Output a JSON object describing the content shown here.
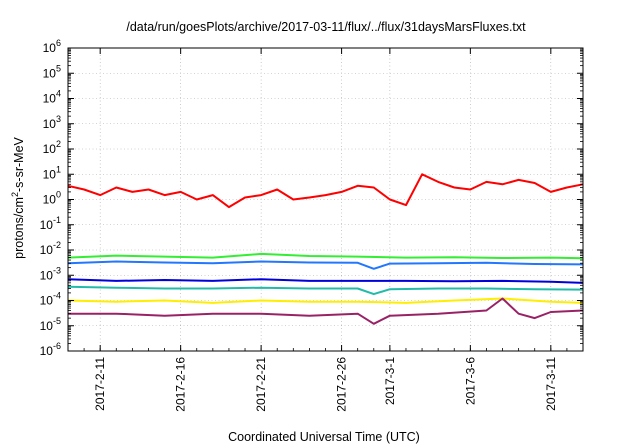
{
  "chart_data": {
    "type": "line",
    "title": "/data/run/goesPlots/archive/2017-03-11/flux/../flux/31daysMarsFluxes.txt",
    "xlabel": "Coordinated Universal Time (UTC)",
    "ylabel_parts": {
      "base": "protons/cm",
      "sup": "2",
      "rest": "-s-sr-MeV"
    },
    "y_scale": "log",
    "ylim": [
      1e-06,
      1000000.0
    ],
    "xlim": [
      "2017-02-09",
      "2017-03-13"
    ],
    "x_ticks": [
      {
        "date": "2017-02-11",
        "label": "2017-2-11"
      },
      {
        "date": "2017-02-16",
        "label": "2017-2-16"
      },
      {
        "date": "2017-02-21",
        "label": "2017-2-21"
      },
      {
        "date": "2017-02-26",
        "label": "2017-2-26"
      },
      {
        "date": "2017-03-01",
        "label": "2017-3-1"
      },
      {
        "date": "2017-03-06",
        "label": "2017-3-6"
      },
      {
        "date": "2017-03-11",
        "label": "2017-3-11"
      }
    ],
    "y_ticks": [
      {
        "value": 1e-06,
        "base": "10",
        "exp": "-6"
      },
      {
        "value": 1e-05,
        "base": "10",
        "exp": "-5"
      },
      {
        "value": 0.0001,
        "base": "10",
        "exp": "-4"
      },
      {
        "value": 0.001,
        "base": "10",
        "exp": "-3"
      },
      {
        "value": 0.01,
        "base": "10",
        "exp": "-2"
      },
      {
        "value": 0.1,
        "base": "10",
        "exp": "-1"
      },
      {
        "value": 1.0,
        "base": "10",
        "exp": "0"
      },
      {
        "value": 10.0,
        "base": "10",
        "exp": "1"
      },
      {
        "value": 100.0,
        "base": "10",
        "exp": "2"
      },
      {
        "value": 1000.0,
        "base": "10",
        "exp": "3"
      },
      {
        "value": 10000.0,
        "base": "10",
        "exp": "4"
      },
      {
        "value": 100000.0,
        "base": "10",
        "exp": "5"
      },
      {
        "value": 1000000.0,
        "base": "10",
        "exp": "6"
      }
    ],
    "grid": true,
    "legend": "none",
    "series": [
      {
        "color": "#ff0000",
        "x": [
          "2017-02-09",
          "2017-02-10",
          "2017-02-11",
          "2017-02-12",
          "2017-02-13",
          "2017-02-14",
          "2017-02-15",
          "2017-02-16",
          "2017-02-17",
          "2017-02-18",
          "2017-02-19",
          "2017-02-20",
          "2017-02-21",
          "2017-02-22",
          "2017-02-23",
          "2017-02-24",
          "2017-02-25",
          "2017-02-26",
          "2017-02-27",
          "2017-02-28",
          "2017-03-01",
          "2017-03-02",
          "2017-03-03",
          "2017-03-04",
          "2017-03-05",
          "2017-03-06",
          "2017-03-07",
          "2017-03-08",
          "2017-03-09",
          "2017-03-10",
          "2017-03-11",
          "2017-03-12",
          "2017-03-13"
        ],
        "y": [
          3.5,
          2.5,
          1.5,
          3.0,
          2.0,
          2.5,
          1.5,
          2.0,
          1.0,
          1.5,
          0.5,
          1.2,
          1.5,
          2.5,
          1.0,
          1.2,
          1.5,
          2.0,
          3.5,
          3.0,
          1.0,
          0.6,
          10,
          5.0,
          3.0,
          2.5,
          5.0,
          4.0,
          6.0,
          4.5,
          2.0,
          3.0,
          4.0
        ]
      },
      {
        "color": "#33ee33",
        "x": [
          "2017-02-09",
          "2017-02-12",
          "2017-02-15",
          "2017-02-18",
          "2017-02-21",
          "2017-02-24",
          "2017-02-27",
          "2017-03-02",
          "2017-03-05",
          "2017-03-08",
          "2017-03-11",
          "2017-03-13"
        ],
        "y": [
          0.005,
          0.006,
          0.0055,
          0.005,
          0.007,
          0.0058,
          0.0055,
          0.005,
          0.0052,
          0.0048,
          0.005,
          0.0047
        ]
      },
      {
        "color": "#2277ff",
        "x": [
          "2017-02-09",
          "2017-02-12",
          "2017-02-15",
          "2017-02-18",
          "2017-02-21",
          "2017-02-24",
          "2017-02-27",
          "2017-02-28",
          "2017-03-01",
          "2017-03-04",
          "2017-03-07",
          "2017-03-10",
          "2017-03-13"
        ],
        "y": [
          0.003,
          0.0035,
          0.0032,
          0.003,
          0.0035,
          0.0032,
          0.0031,
          0.0018,
          0.0029,
          0.003,
          0.0031,
          0.0028,
          0.0027
        ]
      },
      {
        "color": "#0000dd",
        "x": [
          "2017-02-09",
          "2017-02-12",
          "2017-02-15",
          "2017-02-18",
          "2017-02-21",
          "2017-02-24",
          "2017-02-27",
          "2017-03-02",
          "2017-03-05",
          "2017-03-08",
          "2017-03-11",
          "2017-03-13"
        ],
        "y": [
          0.0007,
          0.0006,
          0.00065,
          0.0006,
          0.0007,
          0.0006,
          0.0006,
          0.0006,
          0.00058,
          0.0006,
          0.00055,
          0.0005
        ]
      },
      {
        "color": "#22bbaa",
        "x": [
          "2017-02-09",
          "2017-02-12",
          "2017-02-15",
          "2017-02-18",
          "2017-02-21",
          "2017-02-24",
          "2017-02-27",
          "2017-02-28",
          "2017-03-01",
          "2017-03-04",
          "2017-03-07",
          "2017-03-10",
          "2017-03-13"
        ],
        "y": [
          0.00035,
          0.00032,
          0.0003,
          0.0003,
          0.00032,
          0.0003,
          0.0003,
          0.00018,
          0.00028,
          0.0003,
          0.0003,
          0.00028,
          0.00027
        ]
      },
      {
        "color": "#ffee00",
        "x": [
          "2017-02-09",
          "2017-02-12",
          "2017-02-15",
          "2017-02-18",
          "2017-02-21",
          "2017-02-24",
          "2017-02-27",
          "2017-03-02",
          "2017-03-05",
          "2017-03-08",
          "2017-03-11",
          "2017-03-13"
        ],
        "y": [
          0.0001,
          9e-05,
          0.0001,
          8e-05,
          0.0001,
          9e-05,
          9e-05,
          8e-05,
          0.0001,
          0.00012,
          9e-05,
          8e-05
        ]
      },
      {
        "color": "#992266",
        "x": [
          "2017-02-09",
          "2017-02-12",
          "2017-02-15",
          "2017-02-18",
          "2017-02-21",
          "2017-02-24",
          "2017-02-27",
          "2017-02-28",
          "2017-03-01",
          "2017-03-04",
          "2017-03-07",
          "2017-03-08",
          "2017-03-09",
          "2017-03-10",
          "2017-03-11",
          "2017-03-13"
        ],
        "y": [
          3e-05,
          3e-05,
          2.5e-05,
          3e-05,
          3e-05,
          2.5e-05,
          3e-05,
          1.2e-05,
          2.5e-05,
          3e-05,
          4e-05,
          0.00012,
          3e-05,
          2e-05,
          3.5e-05,
          4e-05
        ]
      }
    ]
  }
}
